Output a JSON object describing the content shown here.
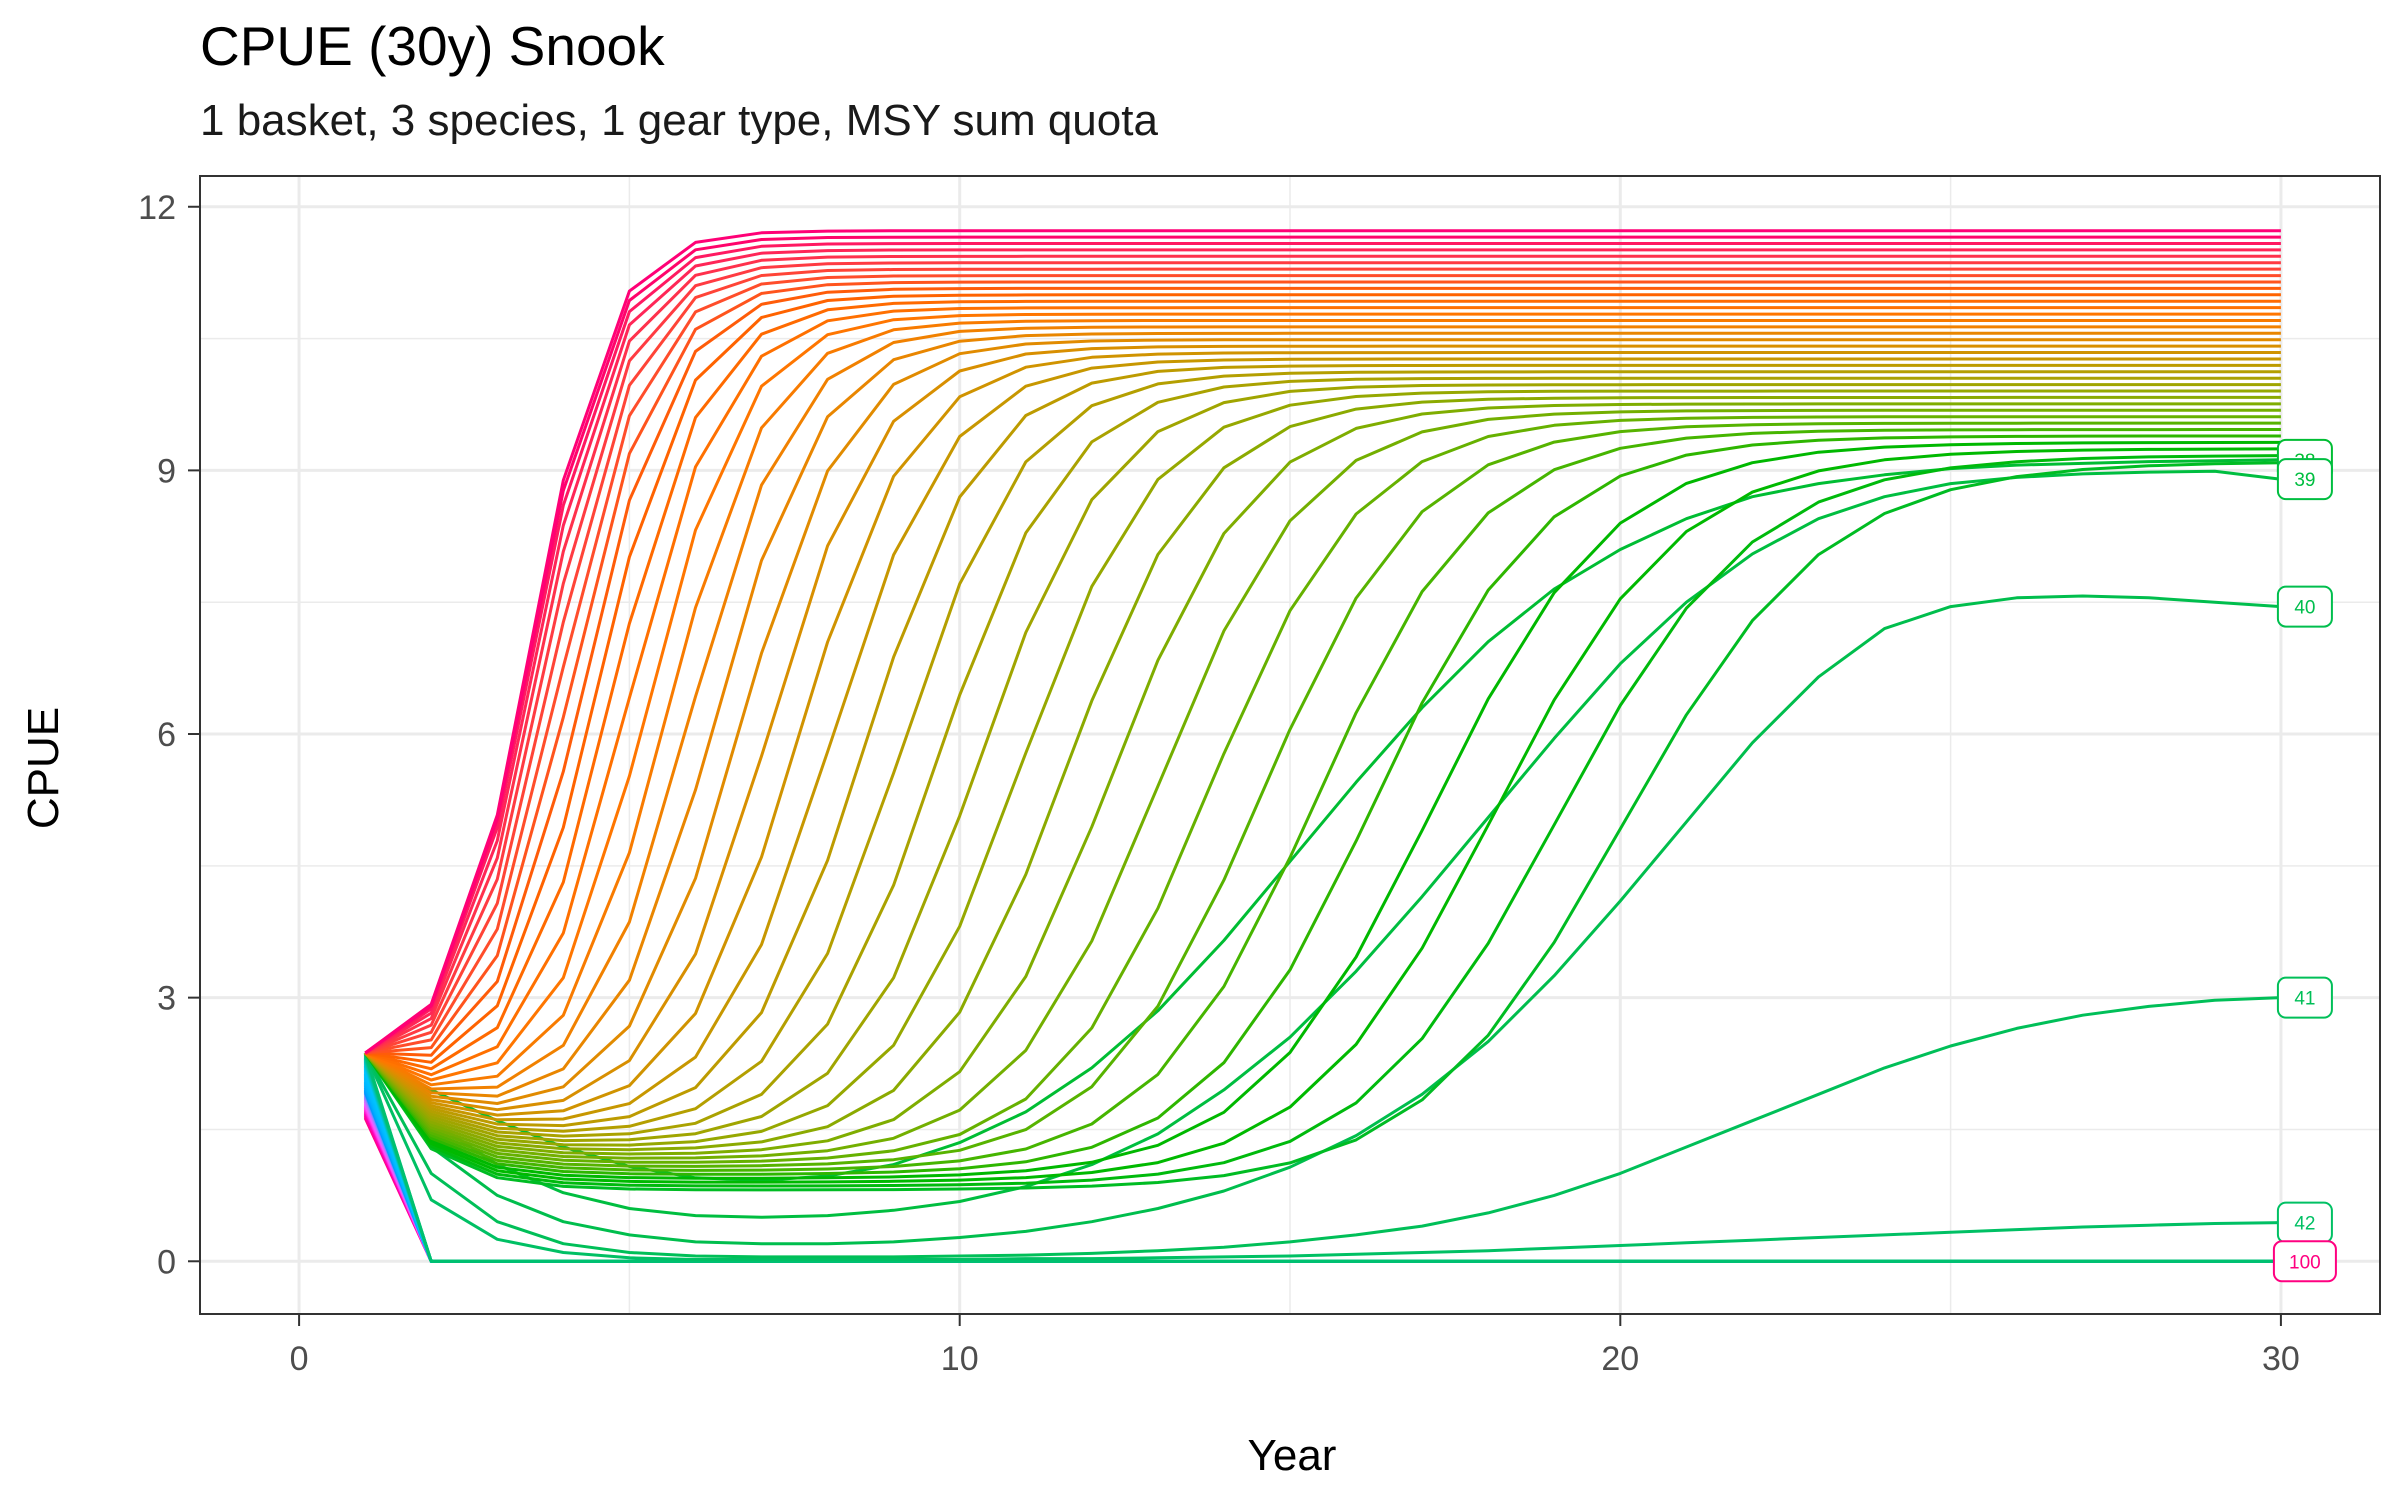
{
  "title": "CPUE (30y) Snook",
  "subtitle": "1 basket, 3 species, 1 gear type, MSY sum quota",
  "chart_data": {
    "type": "line",
    "title": "CPUE (30y) Snook",
    "subtitle": "1 basket, 3 species, 1 gear type, MSY sum quota",
    "xlabel": "Year",
    "ylabel": "CPUE",
    "xlim": [
      -1.5,
      31.5
    ],
    "ylim": [
      -0.6,
      12.35
    ],
    "xticks": [
      0,
      10,
      20,
      30
    ],
    "yticks": [
      0,
      3,
      6,
      9,
      12
    ],
    "grid": true,
    "legend": "none",
    "n_series": 100,
    "x": [
      1,
      2,
      3,
      4,
      5,
      6,
      7,
      8,
      9,
      10,
      11,
      12,
      13,
      14,
      15,
      16,
      17,
      18,
      19,
      20,
      21,
      22,
      23,
      24,
      25,
      26,
      27,
      28,
      29,
      30
    ],
    "series_model": "logistic recovery curves from CPUE 2.37 at year 1 toward equilibria 9.1-11.8; series 43-100 collapse to 0",
    "highlighted_series": [
      {
        "name": "38",
        "x": [
          1,
          2,
          3,
          4,
          5,
          6,
          7,
          8,
          9,
          10,
          11,
          12,
          13,
          14,
          15,
          16,
          17,
          18,
          19,
          20,
          21,
          22,
          23,
          24,
          25,
          26,
          27,
          28,
          29,
          30
        ],
        "values": [
          2.37,
          1.95,
          1.6,
          1.3,
          1.08,
          0.95,
          0.92,
          0.97,
          1.1,
          1.35,
          1.7,
          2.2,
          2.85,
          3.65,
          4.55,
          5.45,
          6.3,
          7.05,
          7.65,
          8.1,
          8.45,
          8.7,
          8.85,
          8.95,
          9.02,
          9.06,
          9.08,
          9.1,
          9.11,
          9.12
        ]
      },
      {
        "name": "39",
        "x": [
          1,
          2,
          3,
          4,
          5,
          6,
          7,
          8,
          9,
          10,
          11,
          12,
          13,
          14,
          15,
          16,
          17,
          18,
          19,
          20,
          21,
          22,
          23,
          24,
          25,
          26,
          27,
          28,
          29,
          30
        ],
        "values": [
          2.37,
          1.6,
          1.1,
          0.78,
          0.6,
          0.52,
          0.5,
          0.52,
          0.58,
          0.68,
          0.85,
          1.1,
          1.45,
          1.95,
          2.55,
          3.3,
          4.15,
          5.05,
          5.95,
          6.8,
          7.5,
          8.05,
          8.45,
          8.7,
          8.85,
          8.92,
          8.96,
          8.98,
          8.99,
          8.9
        ]
      },
      {
        "name": "40",
        "x": [
          1,
          2,
          3,
          4,
          5,
          6,
          7,
          8,
          9,
          10,
          11,
          12,
          13,
          14,
          15,
          16,
          17,
          18,
          19,
          20,
          21,
          22,
          23,
          24,
          25,
          26,
          27,
          28,
          29,
          30
        ],
        "values": [
          2.37,
          1.3,
          0.75,
          0.45,
          0.3,
          0.22,
          0.2,
          0.2,
          0.22,
          0.27,
          0.34,
          0.45,
          0.6,
          0.8,
          1.07,
          1.43,
          1.9,
          2.5,
          3.25,
          4.1,
          5.0,
          5.9,
          6.65,
          7.2,
          7.45,
          7.55,
          7.57,
          7.55,
          7.5,
          7.45
        ]
      },
      {
        "name": "41",
        "x": [
          1,
          2,
          3,
          4,
          5,
          6,
          7,
          8,
          9,
          10,
          11,
          12,
          13,
          14,
          15,
          16,
          17,
          18,
          19,
          20,
          21,
          22,
          23,
          24,
          25,
          26,
          27,
          28,
          29,
          30
        ],
        "values": [
          2.37,
          1.0,
          0.45,
          0.2,
          0.1,
          0.06,
          0.05,
          0.05,
          0.05,
          0.06,
          0.07,
          0.09,
          0.12,
          0.16,
          0.22,
          0.3,
          0.4,
          0.55,
          0.75,
          1.0,
          1.3,
          1.6,
          1.9,
          2.2,
          2.45,
          2.65,
          2.8,
          2.9,
          2.97,
          3.0
        ]
      },
      {
        "name": "42",
        "x": [
          1,
          2,
          3,
          4,
          5,
          6,
          7,
          8,
          9,
          10,
          11,
          12,
          13,
          14,
          15,
          16,
          17,
          18,
          19,
          20,
          21,
          22,
          23,
          24,
          25,
          26,
          27,
          28,
          29,
          30
        ],
        "values": [
          2.37,
          0.7,
          0.25,
          0.1,
          0.04,
          0.02,
          0.02,
          0.02,
          0.02,
          0.02,
          0.03,
          0.03,
          0.04,
          0.05,
          0.06,
          0.08,
          0.1,
          0.12,
          0.15,
          0.18,
          0.21,
          0.24,
          0.27,
          0.3,
          0.33,
          0.36,
          0.39,
          0.41,
          0.43,
          0.44
        ]
      },
      {
        "name": "100",
        "x": [
          1,
          2,
          3,
          4,
          5,
          6,
          7,
          8,
          9,
          10,
          11,
          12,
          13,
          14,
          15,
          16,
          17,
          18,
          19,
          20,
          21,
          22,
          23,
          24,
          25,
          26,
          27,
          28,
          29,
          30
        ],
        "values": [
          1.6,
          0,
          0,
          0,
          0,
          0,
          0,
          0,
          0,
          0,
          0,
          0,
          0,
          0,
          0,
          0,
          0,
          0,
          0,
          0,
          0,
          0,
          0,
          0,
          0,
          0,
          0,
          0,
          0,
          0
        ]
      }
    ],
    "end_labels": [
      "38",
      "39",
      "40",
      "41",
      "42",
      "100"
    ]
  }
}
